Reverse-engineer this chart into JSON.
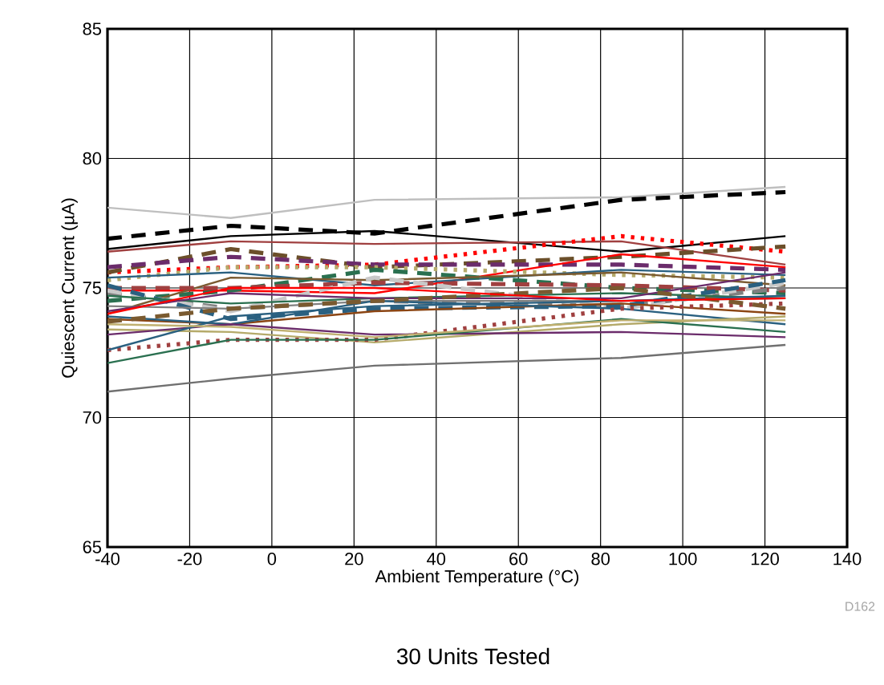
{
  "chart_data": {
    "type": "line",
    "xlabel": "Ambient Temperature (°C)",
    "ylabel": "Quiescent Current (µA)",
    "annotations": [
      "D162",
      "30 Units Tested"
    ],
    "x": [
      -40,
      -10,
      25,
      85,
      125
    ],
    "xlim": [
      -40,
      140
    ],
    "ylim": [
      65,
      85
    ],
    "xticks": [
      -40,
      -20,
      0,
      20,
      40,
      60,
      80,
      100,
      120,
      140
    ],
    "yticks": [
      65,
      70,
      75,
      80,
      85
    ],
    "grid": true,
    "series": [
      {
        "color": "#bfbfbf",
        "line_style": "solid",
        "values": [
          78.1,
          77.7,
          78.4,
          78.5,
          78.9
        ]
      },
      {
        "color": "#000000",
        "line_style": "dashed",
        "values": [
          76.9,
          77.4,
          77.1,
          78.4,
          78.7
        ]
      },
      {
        "color": "#000000",
        "line_style": "solid",
        "values": [
          76.5,
          77.0,
          77.2,
          76.4,
          77.0
        ]
      },
      {
        "color": "#a04040",
        "line_style": "solid",
        "values": [
          76.4,
          76.8,
          76.7,
          76.8,
          75.9
        ]
      },
      {
        "color": "#ff0000",
        "line_style": "dotted",
        "values": [
          75.6,
          75.8,
          75.9,
          77.0,
          76.4
        ]
      },
      {
        "color": "#6b4f2a",
        "line_style": "dashed",
        "values": [
          75.6,
          76.5,
          75.8,
          76.2,
          76.6
        ]
      },
      {
        "color": "#6b2c6b",
        "line_style": "dashed",
        "values": [
          75.8,
          76.2,
          75.9,
          75.9,
          75.7
        ]
      },
      {
        "color": "#ff0000",
        "line_style": "solid",
        "values": [
          74.9,
          74.9,
          74.8,
          76.3,
          75.8
        ]
      },
      {
        "color": "#b5aa6a",
        "line_style": "dotted",
        "values": [
          75.3,
          75.8,
          75.8,
          75.5,
          75.4
        ]
      },
      {
        "color": "#2a6080",
        "line_style": "solid",
        "values": [
          75.4,
          75.6,
          75.1,
          75.7,
          75.5
        ]
      },
      {
        "color": "#2a7050",
        "line_style": "dashed",
        "values": [
          74.5,
          74.9,
          75.7,
          75.0,
          74.8
        ]
      },
      {
        "color": "#7a5a30",
        "line_style": "solid",
        "values": [
          74.0,
          75.4,
          75.3,
          75.6,
          75.1
        ]
      },
      {
        "color": "#a04040",
        "line_style": "dashed",
        "values": [
          75.0,
          75.0,
          75.2,
          75.1,
          74.9
        ]
      },
      {
        "color": "#808080",
        "line_style": "dashed",
        "values": [
          74.8,
          74.2,
          74.5,
          74.3,
          75.0
        ]
      },
      {
        "color": "#c8c8c8",
        "line_style": "dashed",
        "values": [
          74.9,
          74.1,
          75.4,
          74.2,
          75.2
        ]
      },
      {
        "color": "#2a6080",
        "line_style": "dashed",
        "values": [
          75.1,
          73.8,
          74.2,
          74.3,
          75.3
        ]
      },
      {
        "color": "#808080",
        "line_style": "solid",
        "values": [
          74.3,
          74.2,
          74.5,
          74.5,
          74.6
        ]
      },
      {
        "color": "#8b4513",
        "line_style": "solid",
        "values": [
          73.8,
          73.6,
          74.1,
          74.4,
          74.0
        ]
      },
      {
        "color": "#2a7050",
        "line_style": "solid",
        "values": [
          74.7,
          74.4,
          74.6,
          74.8,
          74.6
        ]
      },
      {
        "color": "#6b2c6b",
        "line_style": "solid",
        "values": [
          74.1,
          74.8,
          74.6,
          74.6,
          75.6
        ]
      },
      {
        "color": "#2a6080",
        "line_style": "solid",
        "values": [
          73.9,
          73.6,
          74.5,
          74.2,
          73.6
        ]
      },
      {
        "color": "#b5aa6a",
        "line_style": "solid",
        "values": [
          73.4,
          73.3,
          72.9,
          73.6,
          73.9
        ]
      },
      {
        "color": "#a04040",
        "line_style": "dotted",
        "values": [
          72.6,
          73.0,
          73.0,
          74.2,
          74.4
        ]
      },
      {
        "color": "#6b2c6b",
        "line_style": "solid",
        "values": [
          73.2,
          73.6,
          73.2,
          73.3,
          73.1
        ]
      },
      {
        "color": "#2a7050",
        "line_style": "solid",
        "values": [
          72.1,
          73.0,
          73.0,
          73.8,
          73.3
        ]
      },
      {
        "color": "#2a6080",
        "line_style": "solid",
        "values": [
          72.6,
          73.9,
          74.3,
          74.5,
          74.7
        ]
      },
      {
        "color": "#707070",
        "line_style": "solid",
        "values": [
          71.0,
          71.5,
          72.0,
          72.3,
          72.8
        ]
      },
      {
        "color": "#c0b070",
        "line_style": "solid",
        "values": [
          73.6,
          73.5,
          73.1,
          73.75,
          73.75
        ]
      },
      {
        "color": "#7a5a30",
        "line_style": "dashed",
        "values": [
          73.7,
          74.2,
          74.5,
          75.0,
          74.2
        ]
      },
      {
        "color": "#ff0000",
        "line_style": "solid",
        "values": [
          74.0,
          75.0,
          75.0,
          74.5,
          74.6
        ]
      }
    ]
  }
}
